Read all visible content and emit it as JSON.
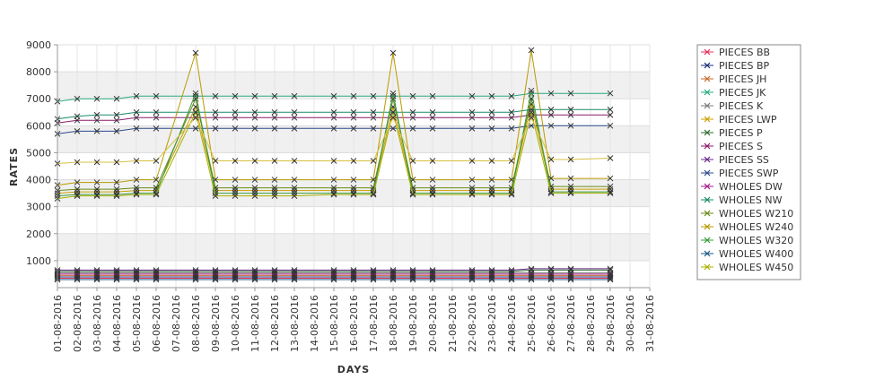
{
  "chart_data": {
    "type": "line",
    "xlabel": "DAYS",
    "ylabel": "RATES",
    "ylim": [
      0,
      9000
    ],
    "yticks": [
      1000,
      2000,
      3000,
      4000,
      5000,
      6000,
      7000,
      8000,
      9000
    ],
    "grid": true,
    "legend_position": "right",
    "categories": [
      "01-08-2016",
      "02-08-2016",
      "03-08-2016",
      "04-08-2016",
      "05-08-2016",
      "06-08-2016",
      "07-08-2016",
      "08-08-2016",
      "09-08-2016",
      "10-08-2016",
      "11-08-2016",
      "12-08-2016",
      "13-08-2016",
      "14-08-2016",
      "15-08-2016",
      "16-08-2016",
      "17-08-2016",
      "18-08-2016",
      "19-08-2016",
      "20-08-2016",
      "21-08-2016",
      "22-08-2016",
      "23-08-2016",
      "24-08-2016",
      "25-08-2016",
      "26-08-2016",
      "27-08-2016",
      "28-08-2016",
      "29-08-2016",
      "30-08-2016",
      "31-08-2016"
    ],
    "series": [
      {
        "name": "PIECES BB",
        "color": "#e0305a",
        "values": [
          350,
          350,
          350,
          350,
          350,
          350,
          null,
          350,
          350,
          350,
          350,
          350,
          350,
          null,
          350,
          350,
          350,
          350,
          350,
          350,
          null,
          350,
          350,
          350,
          350,
          350,
          350,
          null,
          350,
          null,
          null
        ]
      },
      {
        "name": "PIECES BP",
        "color": "#1a2f7a",
        "values": [
          400,
          400,
          400,
          400,
          400,
          400,
          null,
          400,
          400,
          400,
          400,
          400,
          400,
          null,
          400,
          400,
          400,
          400,
          400,
          400,
          null,
          400,
          400,
          400,
          400,
          400,
          400,
          null,
          400,
          null,
          null
        ]
      },
      {
        "name": "PIECES JH",
        "color": "#c86a2a",
        "values": [
          450,
          450,
          450,
          450,
          450,
          450,
          null,
          450,
          450,
          450,
          450,
          450,
          450,
          null,
          450,
          450,
          450,
          450,
          450,
          450,
          null,
          450,
          450,
          450,
          450,
          450,
          450,
          null,
          450,
          null,
          null
        ]
      },
      {
        "name": "PIECES JK",
        "color": "#2aa883",
        "values": [
          6900,
          7000,
          7000,
          7000,
          7100,
          7100,
          null,
          7100,
          7100,
          7100,
          7100,
          7100,
          7100,
          null,
          7100,
          7100,
          7100,
          7100,
          7100,
          7100,
          null,
          7100,
          7100,
          7100,
          7200,
          7200,
          7200,
          null,
          7200,
          null,
          null
        ]
      },
      {
        "name": "PIECES K",
        "color": "#7a7a7a",
        "values": [
          550,
          550,
          550,
          550,
          550,
          550,
          null,
          550,
          550,
          550,
          550,
          550,
          550,
          null,
          550,
          550,
          550,
          550,
          550,
          550,
          null,
          550,
          550,
          550,
          550,
          550,
          550,
          null,
          550,
          null,
          null
        ]
      },
      {
        "name": "PIECES LWP",
        "color": "#c8a000",
        "values": [
          3500,
          3550,
          3550,
          3550,
          3600,
          3600,
          null,
          6700,
          3600,
          3600,
          3600,
          3600,
          3600,
          null,
          3600,
          3600,
          3600,
          6700,
          3600,
          3600,
          null,
          3600,
          3600,
          3600,
          6800,
          3650,
          3650,
          null,
          3650,
          null,
          null
        ]
      },
      {
        "name": "PIECES P",
        "color": "#2d6b2d",
        "values": [
          600,
          600,
          600,
          600,
          600,
          600,
          null,
          600,
          600,
          600,
          600,
          600,
          600,
          null,
          600,
          600,
          600,
          600,
          600,
          600,
          null,
          600,
          600,
          600,
          650,
          650,
          650,
          null,
          650,
          null,
          null
        ]
      },
      {
        "name": "PIECES S",
        "color": "#8a1a6a",
        "values": [
          6100,
          6200,
          6200,
          6200,
          6300,
          6300,
          null,
          6300,
          6300,
          6300,
          6300,
          6300,
          6300,
          null,
          6300,
          6300,
          6300,
          6300,
          6300,
          6300,
          null,
          6300,
          6300,
          6300,
          6400,
          6400,
          6400,
          null,
          6400,
          null,
          null
        ]
      },
      {
        "name": "PIECES SS",
        "color": "#6a2a8a",
        "values": [
          650,
          650,
          650,
          650,
          650,
          650,
          null,
          650,
          650,
          650,
          650,
          650,
          650,
          null,
          650,
          650,
          650,
          650,
          650,
          650,
          null,
          650,
          650,
          650,
          700,
          700,
          700,
          null,
          700,
          null,
          null
        ]
      },
      {
        "name": "PIECES SWP",
        "color": "#2a4a8a",
        "values": [
          5700,
          5800,
          5800,
          5800,
          5900,
          5900,
          null,
          5900,
          5900,
          5900,
          5900,
          5900,
          5900,
          null,
          5900,
          5900,
          5900,
          5900,
          5900,
          5900,
          null,
          5900,
          5900,
          5900,
          6000,
          6000,
          6000,
          null,
          6000,
          null,
          null
        ]
      },
      {
        "name": "WHOLES DW",
        "color": "#a01a8a",
        "values": [
          500,
          500,
          500,
          500,
          500,
          500,
          null,
          500,
          500,
          500,
          500,
          500,
          500,
          null,
          500,
          500,
          500,
          500,
          500,
          500,
          null,
          500,
          500,
          500,
          500,
          500,
          500,
          null,
          500,
          null,
          null
        ]
      },
      {
        "name": "WHOLES NW",
        "color": "#1a8a6a",
        "values": [
          6250,
          6350,
          6400,
          6400,
          6500,
          6500,
          null,
          6500,
          6500,
          6500,
          6500,
          6500,
          6500,
          null,
          6500,
          6500,
          6500,
          6500,
          6500,
          6500,
          null,
          6500,
          6500,
          6500,
          6600,
          6600,
          6600,
          null,
          6600,
          null,
          null
        ]
      },
      {
        "name": "WHOLES W210",
        "color": "#6a8a1a",
        "values": [
          3600,
          3650,
          3650,
          3650,
          3700,
          3700,
          null,
          7000,
          3700,
          3700,
          3700,
          3700,
          3700,
          null,
          3700,
          3700,
          3700,
          7000,
          3700,
          3700,
          null,
          3700,
          3700,
          3700,
          7000,
          3750,
          3750,
          null,
          3750,
          null,
          null
        ]
      },
      {
        "name": "WHOLES W240",
        "color": "#b89a00",
        "values": [
          3800,
          3900,
          3900,
          3900,
          4000,
          4000,
          null,
          8700,
          4000,
          4000,
          4000,
          4000,
          4000,
          null,
          4000,
          4000,
          4000,
          8700,
          4000,
          4000,
          null,
          4000,
          4000,
          4000,
          8800,
          4050,
          4050,
          null,
          4050,
          null,
          null
        ]
      },
      {
        "name": "WHOLES W320",
        "color": "#3a9a3a",
        "values": [
          3400,
          3450,
          3450,
          3450,
          3500,
          3500,
          null,
          7200,
          3500,
          3500,
          3500,
          3500,
          3500,
          null,
          3500,
          3500,
          3500,
          7200,
          3500,
          3500,
          null,
          3500,
          3500,
          3500,
          7300,
          3550,
          3550,
          null,
          3550,
          null,
          null
        ]
      },
      {
        "name": "WHOLES W400",
        "color": "#1a5a8a",
        "values": [
          300,
          300,
          300,
          300,
          300,
          300,
          null,
          300,
          300,
          300,
          300,
          300,
          300,
          null,
          300,
          300,
          300,
          300,
          300,
          300,
          null,
          300,
          300,
          300,
          300,
          300,
          300,
          null,
          300,
          null,
          null
        ]
      },
      {
        "name": "WHOLES W450",
        "color": "#a8b000",
        "values": [
          3300,
          3400,
          3400,
          3400,
          3450,
          3450,
          null,
          6500,
          3400,
          3400,
          3400,
          3400,
          3400,
          null,
          3450,
          3450,
          3450,
          6500,
          3450,
          3450,
          null,
          3450,
          3450,
          3450,
          6500,
          3500,
          3500,
          null,
          3500,
          null,
          null
        ]
      },
      {
        "name": "",
        "color": "#d8c040",
        "values": [
          4600,
          4650,
          4650,
          4650,
          4700,
          4700,
          null,
          6300,
          4700,
          4700,
          4700,
          4700,
          4700,
          null,
          4700,
          4700,
          4700,
          6300,
          4700,
          4700,
          null,
          4700,
          4700,
          4700,
          6300,
          4750,
          4750,
          null,
          4800,
          null,
          null
        ]
      }
    ]
  }
}
